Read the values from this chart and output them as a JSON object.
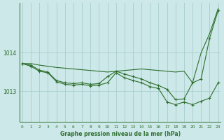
{
  "title": "Graphe pression niveau de la mer (hPa)",
  "background_color": "#cce8e8",
  "grid_color": "#a8cccc",
  "line_color": "#2d6e2d",
  "x_ticks": [
    0,
    1,
    2,
    3,
    4,
    5,
    6,
    7,
    8,
    9,
    10,
    11,
    12,
    13,
    14,
    15,
    16,
    17,
    18,
    19,
    20,
    21,
    22,
    23
  ],
  "y_ticks": [
    1013,
    1014
  ],
  "ylim": [
    1012.2,
    1015.3
  ],
  "xlim": [
    -0.3,
    23.3
  ],
  "series": {
    "line_max": [
      1013.72,
      1013.72,
      1013.68,
      1013.65,
      1013.62,
      1013.6,
      1013.58,
      1013.56,
      1013.54,
      1013.52,
      1013.5,
      1013.52,
      1013.54,
      1013.56,
      1013.58,
      1013.56,
      1013.54,
      1013.52,
      1013.5,
      1013.52,
      1013.22,
      1014.0,
      1014.5,
      1015.15
    ],
    "line_mid": [
      1013.72,
      1013.68,
      1013.55,
      1013.5,
      1013.28,
      1013.22,
      1013.2,
      1013.22,
      1013.18,
      1013.2,
      1013.38,
      1013.52,
      1013.45,
      1013.38,
      1013.32,
      1013.22,
      1013.15,
      1013.05,
      1012.78,
      1012.8,
      1013.22,
      1013.32,
      1014.38,
      1015.1
    ],
    "line_min": [
      1013.72,
      1013.65,
      1013.52,
      1013.48,
      1013.25,
      1013.18,
      1013.16,
      1013.18,
      1013.14,
      1013.16,
      1013.22,
      1013.48,
      1013.35,
      1013.28,
      1013.22,
      1013.12,
      1013.07,
      1012.72,
      1012.65,
      1012.72,
      1012.65,
      1012.74,
      1012.82,
      1013.22
    ]
  }
}
